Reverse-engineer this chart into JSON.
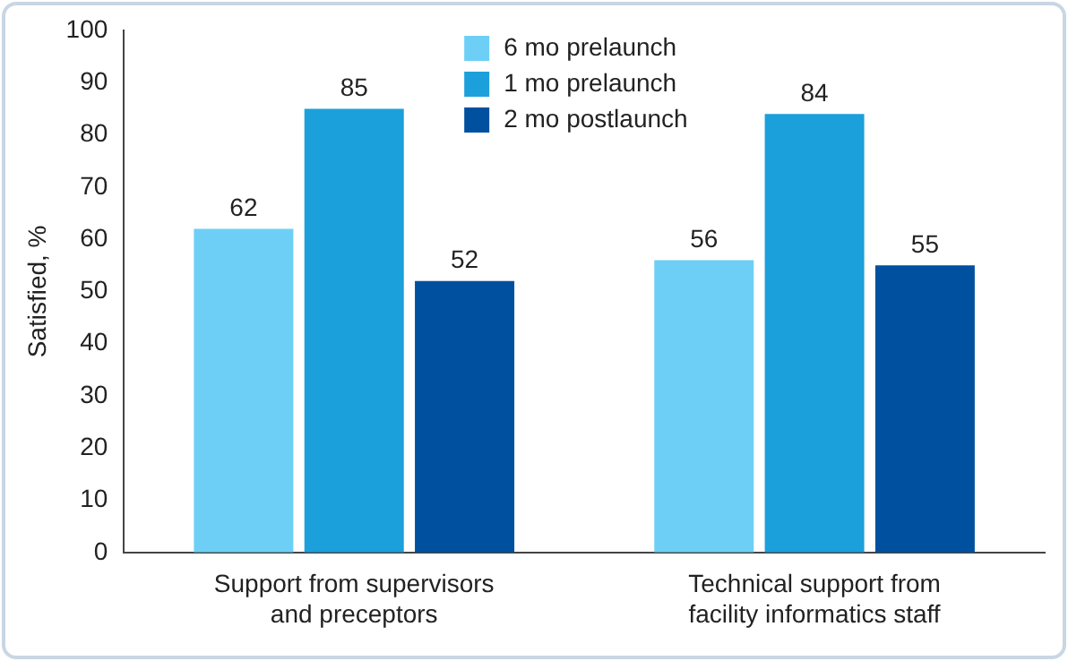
{
  "chart_data": {
    "type": "bar",
    "ylabel": "Satisfied, %",
    "categories": [
      "Support from supervisors\nand preceptors",
      "Technical support from\nfacility informatics staff"
    ],
    "series": [
      {
        "name": "6 mo prelaunch",
        "color": "#6dcff6",
        "values": [
          62,
          56
        ]
      },
      {
        "name": "1 mo prelaunch",
        "color": "#1ba0db",
        "values": [
          85,
          84
        ]
      },
      {
        "name": "2 mo postlaunch",
        "color": "#0050a0",
        "values": [
          52,
          55
        ]
      }
    ],
    "ylim": [
      0,
      100
    ],
    "yticks": [
      0,
      10,
      20,
      30,
      40,
      50,
      60,
      70,
      80,
      90,
      100
    ],
    "data_labels": true,
    "legend": "top",
    "grid": false
  }
}
